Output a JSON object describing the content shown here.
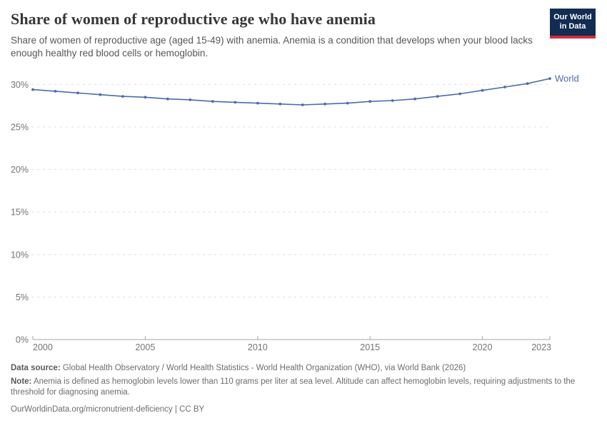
{
  "header": {
    "title": "Share of women of reproductive age who have anemia",
    "subtitle": "Share of women of reproductive age (aged 15-49) with anemia. Anemia is a condition that develops when your blood lacks enough healthy red blood cells or hemoglobin.",
    "logo": {
      "line1": "Our World",
      "line2": "in Data"
    }
  },
  "chart_data": {
    "type": "line",
    "x": [
      2000,
      2001,
      2002,
      2003,
      2004,
      2005,
      2006,
      2007,
      2008,
      2009,
      2010,
      2011,
      2012,
      2013,
      2014,
      2015,
      2016,
      2017,
      2018,
      2019,
      2020,
      2021,
      2022,
      2023
    ],
    "series": [
      {
        "name": "World",
        "end_label": "World",
        "color": "#4b6caa",
        "values": [
          29.4,
          29.2,
          29.0,
          28.8,
          28.6,
          28.5,
          28.3,
          28.2,
          28.0,
          27.9,
          27.8,
          27.7,
          27.6,
          27.7,
          27.8,
          28.0,
          28.1,
          28.3,
          28.6,
          28.9,
          29.3,
          29.7,
          30.1,
          30.7
        ]
      }
    ],
    "ylim": [
      0,
      30
    ],
    "yticks": [
      {
        "value": 0,
        "label": "0%"
      },
      {
        "value": 5,
        "label": "5%"
      },
      {
        "value": 10,
        "label": "10%"
      },
      {
        "value": 15,
        "label": "15%"
      },
      {
        "value": 20,
        "label": "20%"
      },
      {
        "value": 25,
        "label": "25%"
      },
      {
        "value": 30,
        "label": "30%"
      }
    ],
    "xticks": [
      {
        "value": 2000,
        "label": "2000"
      },
      {
        "value": 2005,
        "label": "2005"
      },
      {
        "value": 2010,
        "label": "2010"
      },
      {
        "value": 2015,
        "label": "2015"
      },
      {
        "value": 2020,
        "label": "2020"
      },
      {
        "value": 2023,
        "label": "2023"
      }
    ],
    "grid": "horizontal-dashed",
    "legend_position": "end-of-line"
  },
  "footer": {
    "data_source_label": "Data source:",
    "data_source_text": " Global Health Observatory / World Health Statistics - World Health Organization (WHO), via World Bank (2026)",
    "note_label": "Note:",
    "note_text": " Anemia is defined as hemoglobin levels lower than 110 grams per liter at sea level. Altitude can affect hemoglobin levels, requiring adjustments to the threshold for diagnosing anemia.",
    "url": "OurWorldinData.org/micronutrient-deficiency",
    "separator": " | ",
    "license": "CC BY"
  },
  "colors": {
    "line": "#4b6caa",
    "grid": "#dddddd",
    "axis": "#a5a5a5",
    "tick_label": "#747474",
    "logo_bg": "#132c51",
    "logo_stripe": "#d42b3d"
  }
}
